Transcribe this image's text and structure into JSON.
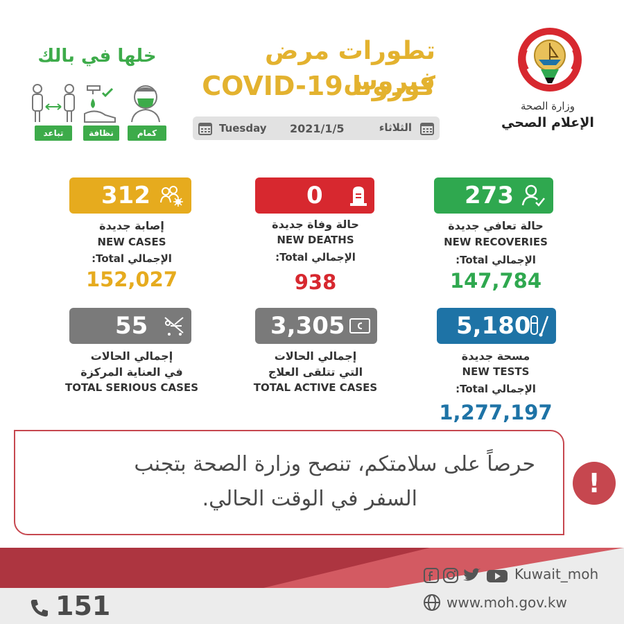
{
  "header": {
    "ministry_name": "وزارة الصحة",
    "ministry_unit": "الإعلام الصحي",
    "title_ar": "تطورات مرض فيروس",
    "title_en": "كورونا COVID-19",
    "title_color": "#e3b22f"
  },
  "date_bar": {
    "day_en": "Tuesday",
    "date": "2021/1/5",
    "day_ar": "الثلاثاء",
    "icon": "calendar-icon"
  },
  "tips": {
    "title": "خلها في بالك",
    "color": "#3dab4a",
    "items": [
      {
        "label": "تباعد",
        "icon": "distancing-icon"
      },
      {
        "label": "نظافة",
        "icon": "handwash-icon"
      },
      {
        "label": "كمام",
        "icon": "mask-icon"
      }
    ]
  },
  "stats": {
    "recoveries": {
      "value": "273",
      "label_ar": "حالة تعافي جديدة",
      "label_en": "NEW RECOVERIES",
      "total_label": "الإجمالي Total:",
      "total": "147,784",
      "color": "#2fa84f",
      "icon": "recovered-person-icon"
    },
    "deaths": {
      "value": "0",
      "label_ar": "حالة وفاة جديدة",
      "label_en": "NEW DEATHS",
      "total_label": "الإجمالي Total:",
      "total": "938",
      "color": "#d7282f",
      "icon": "tombstone-icon"
    },
    "cases": {
      "value": "312",
      "label_ar": "إصابة جديدة",
      "label_en": "NEW CASES",
      "total_label": "الإجمالي Total:",
      "total": "152,027",
      "color": "#e6ab1e",
      "icon": "virus-people-icon"
    },
    "tests": {
      "value": "5,180",
      "label_ar": "مسحة جديدة",
      "label_en": "NEW TESTS",
      "total_label": "الإجمالي Total:",
      "total": "1,277,197",
      "color": "#1e73a6",
      "icon": "test-tube-icon"
    },
    "active": {
      "value": "3,305",
      "label_ar": "إجمالي الحالات",
      "label_ar2": "التي تتلقى العلاج",
      "label_en": "TOTAL ACTIVE CASES",
      "color": "#7a7a7a",
      "icon": "hospital-bed-icon"
    },
    "serious": {
      "value": "55",
      "label_ar": "إجمالي الحالات",
      "label_ar2": "في العناية المركزة",
      "label_en": "TOTAL SERIOUS CASES",
      "color": "#7a7a7a",
      "icon": "stretcher-icon"
    }
  },
  "advisory": {
    "line1": "حرصاً على سلامتكم، تنصح وزارة الصحة بتجنب",
    "line2": "السفر في الوقت الحالي.",
    "icon": "exclamation-icon",
    "color": "#c6474f"
  },
  "footer": {
    "social_handle": "Kuwait_moh",
    "social_icons": [
      "facebook-icon",
      "instagram-icon",
      "twitter-icon",
      "youtube-icon"
    ],
    "website": "www.moh.gov.kw",
    "phone": "151",
    "band_color": "#ad3540"
  }
}
